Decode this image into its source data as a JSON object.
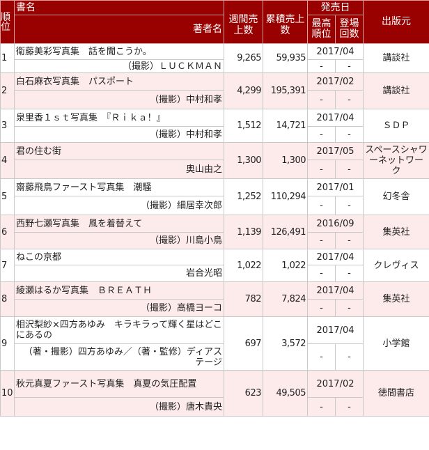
{
  "header": {
    "rank": "順位",
    "title": "書名",
    "author": "著者名",
    "weekly": "週間売上数",
    "cumulative": "累積売上数",
    "release": "発売日",
    "best_rank": "最高順位",
    "appearances": "登場回数",
    "publisher": "出版元"
  },
  "colors": {
    "header_bg": "#990000",
    "row_alt_bg": "#fdeaea"
  },
  "rows": [
    {
      "rank": "1",
      "title": "衛藤美彩写真集　話を聞こうか。",
      "author": "（撮影）ＬＵＣＫＭＡＮ",
      "weekly": "9,265",
      "cumulative": "59,935",
      "release": "2017/04",
      "best": "-",
      "count": "-",
      "publisher": "講談社"
    },
    {
      "rank": "2",
      "title": "白石麻衣写真集　パスポート",
      "author": "（撮影）中村和孝",
      "weekly": "4,299",
      "cumulative": "195,391",
      "release": "2017/02",
      "best": "-",
      "count": "-",
      "publisher": "講談社"
    },
    {
      "rank": "3",
      "title": "泉里香１ｓｔ写真集　『Ｒｉｋａ！』",
      "author": "（撮影）中村和孝",
      "weekly": "1,512",
      "cumulative": "14,721",
      "release": "2017/04",
      "best": "-",
      "count": "-",
      "publisher": "ＳＤＰ"
    },
    {
      "rank": "4",
      "title": "君の住む街",
      "author": "奥山由之",
      "weekly": "1,300",
      "cumulative": "1,300",
      "release": "2017/05",
      "best": "-",
      "count": "-",
      "publisher": "スペースシャワーネットワーク"
    },
    {
      "rank": "5",
      "title": "齋藤飛鳥ファースト写真集　潮騒",
      "author": "（撮影）細居幸次郎",
      "weekly": "1,252",
      "cumulative": "110,294",
      "release": "2017/01",
      "best": "-",
      "count": "-",
      "publisher": "幻冬舎"
    },
    {
      "rank": "6",
      "title": "西野七瀬写真集　風を着替えて",
      "author": "（撮影）川島小鳥",
      "weekly": "1,139",
      "cumulative": "126,491",
      "release": "2016/09",
      "best": "-",
      "count": "-",
      "publisher": "集英社"
    },
    {
      "rank": "7",
      "title": "ねこの京都",
      "author": "岩合光昭",
      "weekly": "1,022",
      "cumulative": "1,022",
      "release": "2017/04",
      "best": "-",
      "count": "-",
      "publisher": "クレヴィス"
    },
    {
      "rank": "8",
      "title": "綾瀬はるか写真集　ＢＲＥＡＴＨ",
      "author": "（撮影）高橋ヨーコ",
      "weekly": "782",
      "cumulative": "7,824",
      "release": "2017/04",
      "best": "-",
      "count": "-",
      "publisher": "集英社"
    },
    {
      "rank": "9",
      "title": "相沢梨紗×四方あゆみ　キラキラって輝く星はどこにあるの",
      "author": "（著・撮影）四方あゆみ／（著・監修）ディアステージ",
      "weekly": "697",
      "cumulative": "3,572",
      "release": "2017/04",
      "best": "-",
      "count": "-",
      "publisher": "小学館"
    },
    {
      "rank": "10",
      "title": "秋元真夏ファースト写真集　真夏の気圧配置",
      "author": "（撮影）唐木貴央",
      "weekly": "623",
      "cumulative": "49,505",
      "release": "2017/02",
      "best": "-",
      "count": "-",
      "publisher": "徳間書店"
    }
  ]
}
